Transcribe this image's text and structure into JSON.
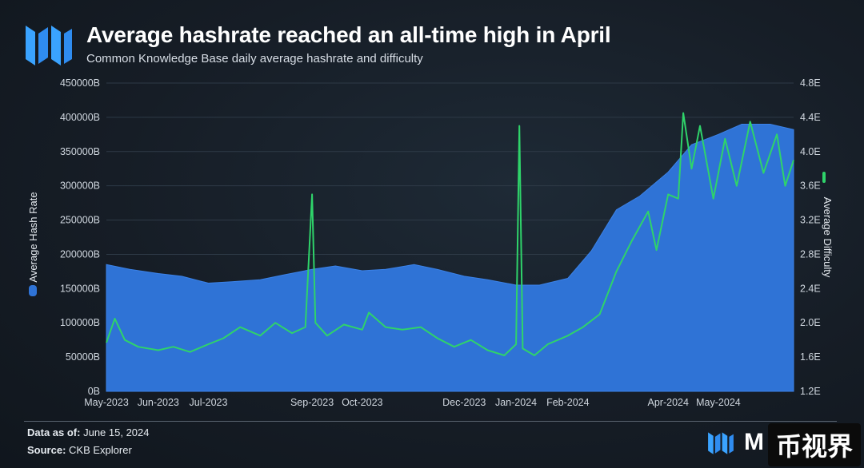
{
  "header": {
    "title": "Average hashrate reached an all-time high in April",
    "subtitle": "Common Knowledge Base daily average hashrate and difficulty"
  },
  "footer": {
    "data_as_of_label": "Data as of:",
    "data_as_of_value": "June 15, 2024",
    "source_label": "Source:",
    "source_value": "CKB Explorer"
  },
  "brand": {
    "text": "M"
  },
  "watermark": {
    "text": "币视界"
  },
  "colors": {
    "hashrate_fill": "#2f73d6",
    "difficulty_line": "#2fd36a",
    "background": "#161d26",
    "grid": "#2e3a47"
  },
  "chart_data": {
    "type": "area",
    "x_axis": {
      "range": [
        "2023-05-01",
        "2024-06-15"
      ],
      "tick_labels": [
        "May-2023",
        "Jun-2023",
        "Jul-2023",
        "Sep-2023",
        "Oct-2023",
        "Dec-2023",
        "Jan-2024",
        "Feb-2024",
        "Apr-2024",
        "May-2024"
      ],
      "tick_dates": [
        "2023-05-01",
        "2023-06-01",
        "2023-07-01",
        "2023-09-01",
        "2023-10-01",
        "2023-12-01",
        "2024-01-01",
        "2024-02-01",
        "2024-04-01",
        "2024-05-01"
      ]
    },
    "y_left": {
      "label": "Average Hash Rate",
      "range": [
        0,
        450000
      ],
      "ticks": [
        "0B",
        "50000B",
        "100000B",
        "150000B",
        "200000B",
        "250000B",
        "300000B",
        "350000B",
        "400000B",
        "450000B"
      ]
    },
    "y_right": {
      "label": "Average Difficulty",
      "range": [
        1.2,
        4.8
      ],
      "ticks": [
        "1.2E",
        "1.6E",
        "2.0E",
        "2.4E",
        "2.8E",
        "3.2E",
        "3.6E",
        "4.0E",
        "4.4E",
        "4.8E"
      ]
    },
    "grid": "horizontal",
    "series": [
      {
        "name": "Average Hash Rate",
        "type": "area",
        "axis": "left",
        "points": [
          [
            "2023-05-01",
            185000
          ],
          [
            "2023-05-15",
            178000
          ],
          [
            "2023-06-01",
            172000
          ],
          [
            "2023-06-15",
            168000
          ],
          [
            "2023-07-01",
            158000
          ],
          [
            "2023-07-15",
            160000
          ],
          [
            "2023-08-01",
            163000
          ],
          [
            "2023-08-15",
            170000
          ],
          [
            "2023-09-01",
            178000
          ],
          [
            "2023-09-15",
            183000
          ],
          [
            "2023-10-01",
            176000
          ],
          [
            "2023-10-15",
            178000
          ],
          [
            "2023-11-01",
            185000
          ],
          [
            "2023-11-15",
            178000
          ],
          [
            "2023-12-01",
            168000
          ],
          [
            "2023-12-15",
            163000
          ],
          [
            "2024-01-01",
            155000
          ],
          [
            "2024-01-15",
            155000
          ],
          [
            "2024-02-01",
            165000
          ],
          [
            "2024-02-15",
            205000
          ],
          [
            "2024-03-01",
            265000
          ],
          [
            "2024-03-15",
            285000
          ],
          [
            "2024-04-01",
            320000
          ],
          [
            "2024-04-15",
            360000
          ],
          [
            "2024-05-01",
            375000
          ],
          [
            "2024-05-15",
            390000
          ],
          [
            "2024-06-01",
            390000
          ],
          [
            "2024-06-15",
            382000
          ]
        ]
      },
      {
        "name": "Average Difficulty",
        "type": "line",
        "axis": "right",
        "points": [
          [
            "2023-05-01",
            1.77
          ],
          [
            "2023-05-06",
            2.05
          ],
          [
            "2023-05-12",
            1.8
          ],
          [
            "2023-05-20",
            1.72
          ],
          [
            "2023-06-01",
            1.68
          ],
          [
            "2023-06-10",
            1.72
          ],
          [
            "2023-06-20",
            1.66
          ],
          [
            "2023-07-01",
            1.75
          ],
          [
            "2023-07-10",
            1.82
          ],
          [
            "2023-07-20",
            1.95
          ],
          [
            "2023-08-01",
            1.85
          ],
          [
            "2023-08-10",
            2.0
          ],
          [
            "2023-08-20",
            1.88
          ],
          [
            "2023-08-28",
            1.95
          ],
          [
            "2023-09-01",
            3.5
          ],
          [
            "2023-09-03",
            2.0
          ],
          [
            "2023-09-10",
            1.85
          ],
          [
            "2023-09-20",
            1.98
          ],
          [
            "2023-10-01",
            1.92
          ],
          [
            "2023-10-05",
            2.12
          ],
          [
            "2023-10-15",
            1.95
          ],
          [
            "2023-10-25",
            1.92
          ],
          [
            "2023-11-05",
            1.95
          ],
          [
            "2023-11-15",
            1.82
          ],
          [
            "2023-11-25",
            1.72
          ],
          [
            "2023-12-05",
            1.8
          ],
          [
            "2023-12-15",
            1.68
          ],
          [
            "2023-12-25",
            1.62
          ],
          [
            "2024-01-01",
            1.75
          ],
          [
            "2024-01-03",
            4.3
          ],
          [
            "2024-01-05",
            1.7
          ],
          [
            "2024-01-12",
            1.62
          ],
          [
            "2024-01-20",
            1.75
          ],
          [
            "2024-02-01",
            1.85
          ],
          [
            "2024-02-10",
            1.95
          ],
          [
            "2024-02-20",
            2.1
          ],
          [
            "2024-03-01",
            2.6
          ],
          [
            "2024-03-10",
            2.95
          ],
          [
            "2024-03-20",
            3.3
          ],
          [
            "2024-03-25",
            2.85
          ],
          [
            "2024-04-01",
            3.5
          ],
          [
            "2024-04-07",
            3.45
          ],
          [
            "2024-04-10",
            4.45
          ],
          [
            "2024-04-15",
            3.8
          ],
          [
            "2024-04-20",
            4.3
          ],
          [
            "2024-04-28",
            3.45
          ],
          [
            "2024-05-05",
            4.15
          ],
          [
            "2024-05-12",
            3.6
          ],
          [
            "2024-05-20",
            4.35
          ],
          [
            "2024-05-28",
            3.75
          ],
          [
            "2024-06-05",
            4.2
          ],
          [
            "2024-06-10",
            3.6
          ],
          [
            "2024-06-15",
            3.9
          ]
        ]
      }
    ]
  }
}
